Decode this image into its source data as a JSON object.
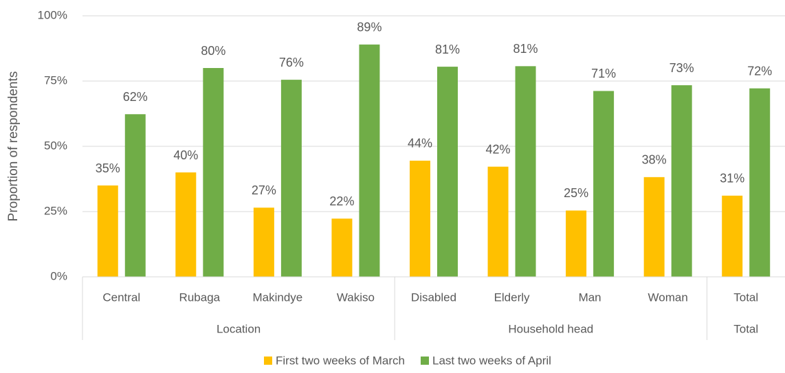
{
  "chart_data": {
    "type": "bar",
    "y_label": "Proportion of respondents",
    "categories": [
      "Central",
      "Rubaga",
      "Makindye",
      "Wakiso",
      "Disabled",
      "Elderly",
      "Man",
      "Woman",
      "Total"
    ],
    "groups": [
      {
        "label": "Location",
        "count": 4
      },
      {
        "label": "Household head",
        "count": 4
      },
      {
        "label": "Total",
        "count": 1
      }
    ],
    "series": [
      {
        "name": "First two weeks of March",
        "color": "#FFC000",
        "values": [
          35,
          40,
          26.5,
          22.3,
          44.5,
          42.2,
          25.4,
          38.2,
          31.1
        ],
        "value_labels": [
          "35%",
          "40%",
          "27%",
          "22%",
          "44%",
          "42%",
          "25%",
          "38%",
          "31%"
        ]
      },
      {
        "name": "Last two weeks of April",
        "color": "#70AD47",
        "values": [
          62.3,
          80,
          75.5,
          89,
          80.5,
          80.7,
          71.2,
          73.4,
          72.2
        ],
        "value_labels": [
          "62%",
          "80%",
          "76%",
          "89%",
          "81%",
          "81%",
          "71%",
          "73%",
          "72%"
        ]
      }
    ],
    "ylim": [
      0,
      100
    ],
    "yticks": [
      {
        "value": 0,
        "label": "0%"
      },
      {
        "value": 25,
        "label": "25%"
      },
      {
        "value": 50,
        "label": "50%"
      },
      {
        "value": 75,
        "label": "75%"
      },
      {
        "value": 100,
        "label": "100%"
      }
    ],
    "grid": true,
    "legend": "bottom"
  }
}
